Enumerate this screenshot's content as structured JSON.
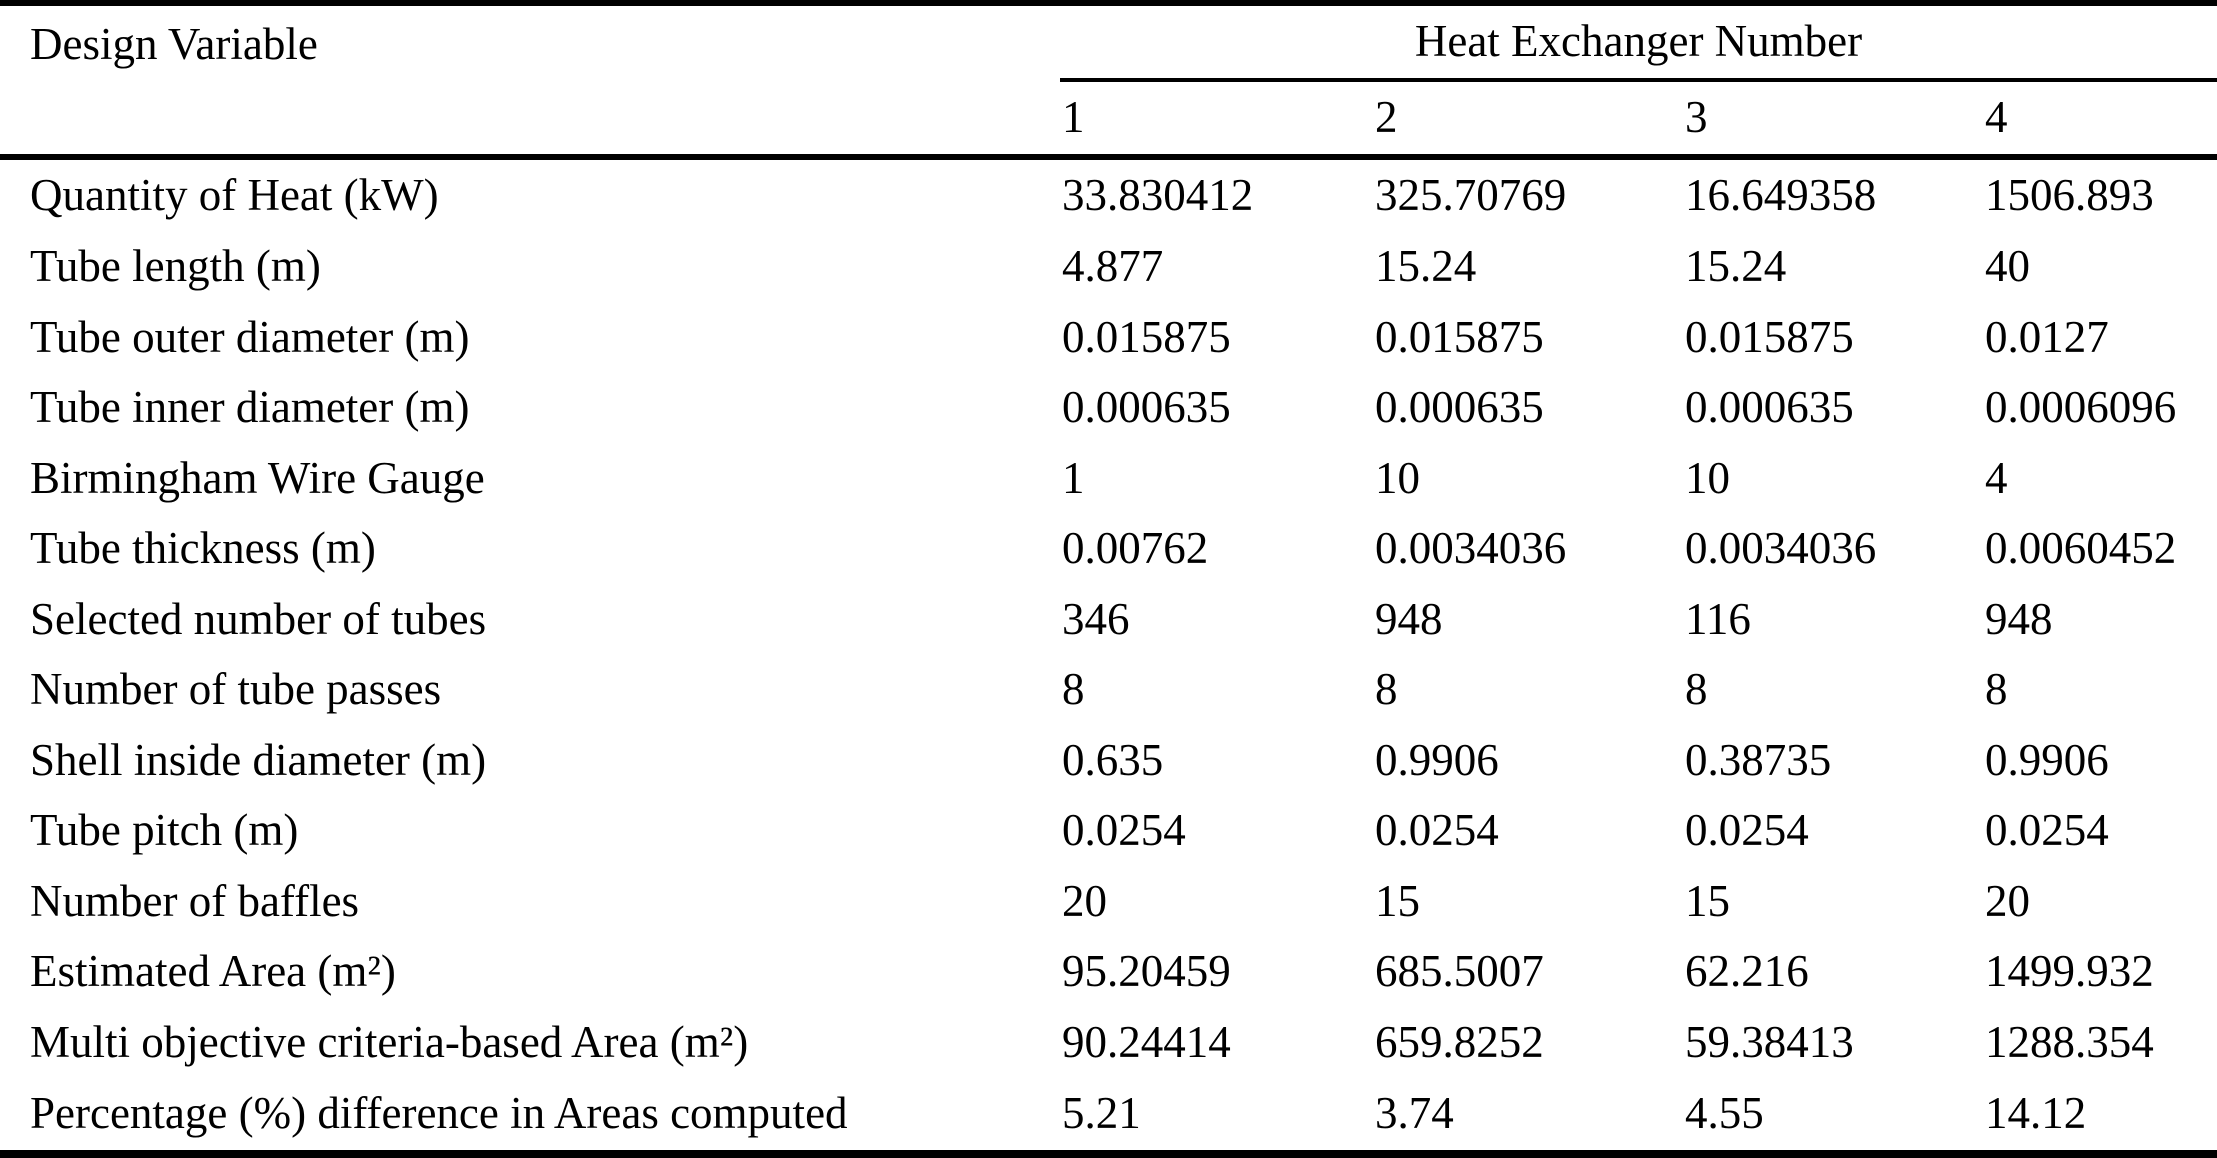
{
  "table": {
    "header": {
      "design_variable": "Design Variable",
      "group_title": "Heat Exchanger Number",
      "columns": [
        "1",
        "2",
        "3",
        "4"
      ]
    },
    "rows": [
      {
        "label": "Quantity of Heat (kW)",
        "values": [
          "33.830412",
          "325.70769",
          "16.649358",
          "1506.893"
        ]
      },
      {
        "label": "Tube length (m)",
        "values": [
          "4.877",
          "15.24",
          "15.24",
          "40"
        ]
      },
      {
        "label": "Tube outer diameter (m)",
        "values": [
          "0.015875",
          "0.015875",
          "0.015875",
          "0.0127"
        ]
      },
      {
        "label": "Tube inner diameter (m)",
        "values": [
          "0.000635",
          "0.000635",
          "0.000635",
          "0.0006096"
        ]
      },
      {
        "label": "Birmingham Wire Gauge",
        "values": [
          "1",
          "10",
          "10",
          "4"
        ]
      },
      {
        "label": "Tube thickness (m)",
        "values": [
          "0.00762",
          "0.0034036",
          "0.0034036",
          "0.0060452"
        ]
      },
      {
        "label": "Selected number of tubes",
        "values": [
          "346",
          "948",
          "116",
          "948"
        ]
      },
      {
        "label": "Number of tube passes",
        "values": [
          "8",
          "8",
          "8",
          "8"
        ]
      },
      {
        "label": "Shell inside diameter (m)",
        "values": [
          "0.635",
          "0.9906",
          "0.38735",
          "0.9906"
        ]
      },
      {
        "label": "Tube pitch (m)",
        "values": [
          "0.0254",
          "0.0254",
          "0.0254",
          "0.0254"
        ]
      },
      {
        "label": "Number of baffles",
        "values": [
          "20",
          "15",
          "15",
          "20"
        ]
      },
      {
        "label": "Estimated Area (m²)",
        "values": [
          "95.20459",
          "685.5007",
          "62.216",
          "1499.932"
        ]
      },
      {
        "label": "Multi objective criteria-based Area (m²)",
        "values": [
          "90.24414",
          "659.8252",
          "59.38413",
          "1288.354"
        ]
      },
      {
        "label": "Percentage (%) difference in Areas computed",
        "values": [
          "5.21",
          "3.74",
          "4.55",
          "14.12"
        ]
      }
    ]
  }
}
